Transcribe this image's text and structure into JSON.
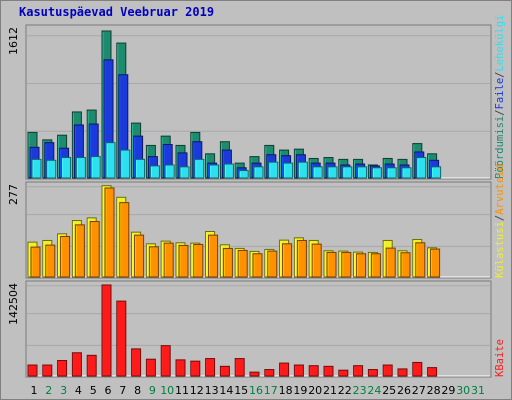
{
  "title": "Kasutuspäevad Veebruar 2019",
  "colors": {
    "background": "#c0c0c0",
    "panel": "#c0c0c0",
    "grid": "#a8a8a8",
    "title": "#0000c0",
    "hits": "#1e8a6e",
    "files": "#1a3adc",
    "pages": "#2de0f0",
    "visits": "#f0f028",
    "sites": "#ff9000",
    "kbytes": "#ff1a1a",
    "weekday_label": "#000000",
    "weekend_label": "#008040"
  },
  "legends": {
    "top": [
      {
        "text": "Pöördumisi",
        "color": "#1e8a6e"
      },
      {
        "text": "/",
        "color": "#404040"
      },
      {
        "text": "Faile",
        "color": "#1a3adc"
      },
      {
        "text": "/",
        "color": "#404040"
      },
      {
        "text": "Lehekülgi",
        "color": "#2de0f0"
      }
    ],
    "middle": [
      {
        "text": "Külastusi",
        "color": "#f0f028"
      },
      {
        "text": "/",
        "color": "#404040"
      },
      {
        "text": "Arvuteid",
        "color": "#ff9000"
      }
    ],
    "bottom": [
      {
        "text": "KBaite",
        "color": "#ff1a1a"
      }
    ]
  },
  "chart_data": [
    {
      "type": "bar",
      "panel": "top",
      "ymax_label": "1612",
      "ylim": [
        0,
        1612
      ],
      "categories": [
        "1",
        "2",
        "3",
        "4",
        "5",
        "6",
        "7",
        "8",
        "9",
        "10",
        "11",
        "12",
        "13",
        "14",
        "15",
        "16",
        "17",
        "18",
        "19",
        "20",
        "21",
        "22",
        "23",
        "24",
        "25",
        "26",
        "27",
        "28",
        "29",
        "30",
        "31"
      ],
      "weekend_days": [
        "2",
        "3",
        "9",
        "10",
        "16",
        "17",
        "23",
        "24",
        "30",
        "31"
      ],
      "series": [
        {
          "name": "Pöördumisi",
          "color_key": "hits",
          "values": [
            490,
            410,
            460,
            710,
            730,
            1580,
            1450,
            590,
            350,
            450,
            350,
            490,
            260,
            390,
            160,
            230,
            350,
            300,
            310,
            210,
            220,
            200,
            200,
            140,
            210,
            200,
            370,
            260,
            0,
            0,
            0
          ]
        },
        {
          "name": "Faile",
          "color_key": "files",
          "values": [
            330,
            380,
            320,
            570,
            580,
            1270,
            1110,
            450,
            230,
            360,
            270,
            390,
            160,
            300,
            110,
            160,
            250,
            240,
            250,
            160,
            160,
            140,
            150,
            130,
            150,
            140,
            280,
            190,
            0,
            0,
            0
          ]
        },
        {
          "name": "Lehekülgi",
          "color_key": "pages",
          "values": [
            200,
            190,
            220,
            220,
            230,
            380,
            300,
            200,
            130,
            140,
            120,
            200,
            140,
            150,
            80,
            120,
            170,
            160,
            170,
            120,
            120,
            120,
            120,
            110,
            110,
            110,
            220,
            120,
            0,
            0,
            0
          ]
        }
      ]
    },
    {
      "type": "bar",
      "panel": "middle",
      "ymax_label": "277",
      "ylim": [
        0,
        277
      ],
      "categories": [
        "1",
        "2",
        "3",
        "4",
        "5",
        "6",
        "7",
        "8",
        "9",
        "10",
        "11",
        "12",
        "13",
        "14",
        "15",
        "16",
        "17",
        "18",
        "19",
        "20",
        "21",
        "22",
        "23",
        "24",
        "25",
        "26",
        "27",
        "28",
        "29",
        "30",
        "31"
      ],
      "series": [
        {
          "name": "Külastusi",
          "color_key": "visits",
          "values": [
            105,
            110,
            130,
            170,
            178,
            275,
            240,
            135,
            100,
            108,
            103,
            102,
            137,
            97,
            86,
            77,
            83,
            111,
            118,
            110,
            79,
            78,
            75,
            74,
            110,
            79,
            113,
            88,
            0,
            0,
            0
          ]
        },
        {
          "name": "Arvuteid",
          "color_key": "sites",
          "values": [
            90,
            96,
            122,
            157,
            167,
            268,
            224,
            126,
            91,
            102,
            95,
            98,
            126,
            86,
            80,
            70,
            78,
            100,
            110,
            99,
            74,
            74,
            70,
            70,
            87,
            73,
            103,
            84,
            0,
            0,
            0
          ]
        }
      ]
    },
    {
      "type": "bar",
      "panel": "bottom",
      "ymax_label": "142504",
      "ylim": [
        0,
        142504
      ],
      "categories": [
        "1",
        "2",
        "3",
        "4",
        "5",
        "6",
        "7",
        "8",
        "9",
        "10",
        "11",
        "12",
        "13",
        "14",
        "15",
        "16",
        "17",
        "18",
        "19",
        "20",
        "21",
        "22",
        "23",
        "24",
        "25",
        "26",
        "27",
        "28",
        "29",
        "30",
        "31"
      ],
      "series": [
        {
          "name": "KBaite",
          "color_key": "kbytes",
          "values": [
            17000,
            17000,
            24000,
            36000,
            32000,
            141000,
            116000,
            42000,
            26000,
            47000,
            25000,
            23000,
            27000,
            15000,
            27000,
            6000,
            10000,
            20000,
            17000,
            16000,
            15000,
            9000,
            16000,
            10000,
            17000,
            11000,
            21000,
            13000,
            0,
            0,
            0
          ]
        }
      ]
    }
  ]
}
